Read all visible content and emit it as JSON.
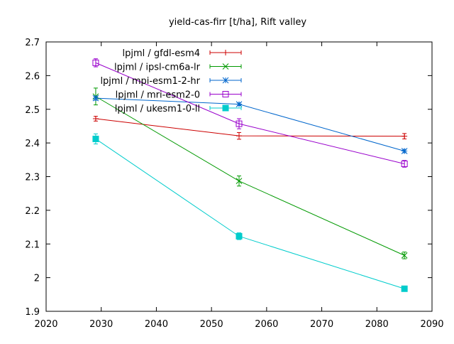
{
  "chart_data": {
    "type": "line",
    "title": "yield-cas-firr [t/ha], Rift valley",
    "xlabel": "",
    "ylabel": "",
    "xlim": [
      2020,
      2090
    ],
    "ylim": [
      1.9,
      2.7
    ],
    "xticks": [
      2020,
      2030,
      2040,
      2050,
      2060,
      2070,
      2080,
      2090
    ],
    "yticks": [
      1.9,
      2.0,
      2.1,
      2.2,
      2.3,
      2.4,
      2.5,
      2.6,
      2.7
    ],
    "xtick_labels": [
      "2020",
      "2030",
      "2040",
      "2050",
      "2060",
      "2070",
      "2080",
      "2090"
    ],
    "ytick_labels": [
      "1.9",
      "2",
      "2.1",
      "2.2",
      "2.3",
      "2.4",
      "2.5",
      "2.6",
      "2.7"
    ],
    "grid": false,
    "legend_position": "top-left",
    "series": [
      {
        "name": "lpjml / gfdl-esm4",
        "color": "#cc0000",
        "marker": "plus",
        "x": [
          2029,
          2055,
          2085
        ],
        "y": [
          2.472,
          2.421,
          2.42
        ],
        "err": [
          0.007,
          0.01,
          0.008
        ]
      },
      {
        "name": "lpjml / ipsl-cm6a-lr",
        "color": "#009900",
        "marker": "cross",
        "x": [
          2029,
          2055,
          2085
        ],
        "y": [
          2.538,
          2.287,
          2.066
        ],
        "err": [
          0.025,
          0.015,
          0.01
        ]
      },
      {
        "name": "lpjml / mpi-esm1-2-hr",
        "color": "#0066cc",
        "marker": "star",
        "x": [
          2029,
          2055,
          2085
        ],
        "y": [
          2.533,
          2.515,
          2.376
        ],
        "err": [
          0.006,
          0.004,
          0.005
        ]
      },
      {
        "name": "lpjml / mri-esm2-0",
        "color": "#9900cc",
        "marker": "open-square",
        "x": [
          2029,
          2055,
          2085
        ],
        "y": [
          2.638,
          2.457,
          2.338
        ],
        "err": [
          0.012,
          0.015,
          0.01
        ]
      },
      {
        "name": "lpjml / ukesm1-0-ll",
        "color": "#00cccc",
        "marker": "filled-square",
        "x": [
          2029,
          2055,
          2085
        ],
        "y": [
          2.412,
          2.123,
          1.967
        ],
        "err": [
          0.015,
          0.01,
          0.004
        ]
      }
    ]
  }
}
